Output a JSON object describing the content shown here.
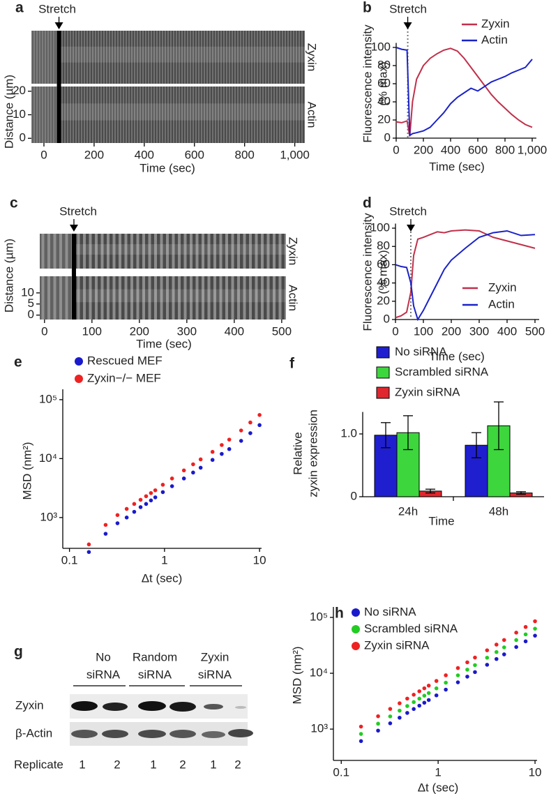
{
  "chart_data": [
    {
      "type": "kymograph",
      "panel": "a",
      "annotation": "Stretch",
      "tracks": [
        "Zyxin",
        "Actin"
      ],
      "xlabel": "Time (sec)",
      "ylabel": "Distance (µm)",
      "xlim": [
        -50,
        1040
      ],
      "xticks": [
        0,
        200,
        400,
        600,
        800,
        {
          "value": 1000,
          "label": "1,000"
        }
      ],
      "ylim": [
        -2,
        22
      ],
      "yticks": [
        0,
        10,
        20
      ],
      "stretch": 60
    },
    {
      "type": "line",
      "panel": "b",
      "annotation": "Stretch",
      "xlabel": "Time (sec)",
      "ylabel": [
        "Fluorescence intensity",
        "(% max)"
      ],
      "x": [
        0,
        40,
        80,
        100,
        120,
        150,
        200,
        250,
        300,
        350,
        400,
        450,
        500,
        550,
        600,
        650,
        700,
        750,
        800,
        850,
        900,
        950,
        1000
      ],
      "series": [
        {
          "name": "Zyxin",
          "color": "#c0304a",
          "values": [
            18,
            17,
            19,
            2,
            40,
            65,
            80,
            88,
            93,
            97,
            99,
            96,
            88,
            78,
            68,
            58,
            48,
            40,
            33,
            26,
            20,
            15,
            12
          ]
        },
        {
          "name": "Actin",
          "color": "#1a22c8",
          "values": [
            100,
            98,
            97,
            3,
            5,
            6,
            8,
            12,
            20,
            28,
            38,
            45,
            50,
            55,
            52,
            57,
            62,
            65,
            68,
            72,
            75,
            78,
            87
          ]
        }
      ],
      "xlim": [
        0,
        1000
      ],
      "xticks": [
        0,
        200,
        400,
        600,
        800,
        {
          "value": 1000,
          "label": "1,000"
        }
      ],
      "ylim": [
        0,
        105
      ],
      "yticks": [
        0,
        20,
        40,
        60,
        80,
        100
      ],
      "stretch": 85
    },
    {
      "type": "kymograph",
      "panel": "c",
      "annotation": "Stretch",
      "tracks": [
        "Zyxin",
        "Actin"
      ],
      "xlabel": "Time (sec)",
      "ylabel": "Distance (µm)",
      "xlim": [
        -10,
        509
      ],
      "xticks": [
        0,
        100,
        200,
        300,
        400,
        500
      ],
      "ylim": [
        -2,
        17.5
      ],
      "yticks": [
        0,
        5,
        10
      ],
      "stretch": 62
    },
    {
      "type": "line",
      "panel": "d",
      "annotation": "Stretch",
      "xlabel": "Time (sec)",
      "ylabel": [
        "Fluorescence intensity",
        "(% max)"
      ],
      "x": [
        0,
        20,
        40,
        55,
        65,
        80,
        100,
        125,
        150,
        175,
        200,
        250,
        300,
        350,
        400,
        450,
        500
      ],
      "series": [
        {
          "name": "Zyxin",
          "color": "#c0304a",
          "values": [
            2,
            4,
            8,
            30,
            70,
            88,
            90,
            93,
            96,
            95,
            97,
            98,
            97,
            90,
            86,
            82,
            78
          ]
        },
        {
          "name": "Actin",
          "color": "#1a22c8",
          "values": [
            60,
            58,
            57,
            40,
            15,
            0,
            10,
            25,
            40,
            55,
            65,
            78,
            90,
            95,
            97,
            92,
            93
          ]
        }
      ],
      "xlim": [
        0,
        500
      ],
      "xticks": [
        0,
        100,
        200,
        300,
        400,
        500
      ],
      "ylim": [
        0,
        105
      ],
      "yticks": [
        0,
        20,
        40,
        60,
        80,
        100
      ],
      "stretch": 55
    },
    {
      "type": "scatter",
      "panel": "e",
      "xlabel": "Δt (sec)",
      "ylabel": "MSD (nm²)",
      "xscale": "log",
      "yscale": "log",
      "x": [
        0.16,
        0.24,
        0.32,
        0.4,
        0.48,
        0.56,
        0.64,
        0.72,
        0.8,
        0.96,
        1.2,
        1.6,
        2,
        2.4,
        3.2,
        4,
        4.8,
        6.4,
        8,
        10
      ],
      "series": [
        {
          "name": "Rescued MEF",
          "color": "#1a1acc",
          "values": [
            260,
            530,
            800,
            1000,
            1250,
            1500,
            1700,
            1950,
            2200,
            2700,
            3400,
            4600,
            5800,
            7000,
            9500,
            12000,
            14500,
            20000,
            27000,
            37000
          ]
        },
        {
          "name": "Zyxin−/− MEF",
          "color": "#ee2222",
          "values": [
            350,
            750,
            1100,
            1400,
            1700,
            2000,
            2300,
            2600,
            2900,
            3600,
            4600,
            6300,
            8000,
            9700,
            13000,
            17000,
            21000,
            30000,
            41000,
            55000
          ]
        }
      ],
      "xlim": [
        0.085,
        10.5
      ],
      "xticks": [
        0.1,
        1,
        10
      ],
      "ylim": [
        300,
        150000
      ],
      "yticks": [
        {
          "value": 1000,
          "label": "10³"
        },
        {
          "value": 10000,
          "label": "10⁴"
        },
        {
          "value": 100000,
          "label": "10⁵"
        }
      ]
    },
    {
      "type": "bar",
      "panel": "f",
      "xlabel": "Time",
      "ylabel": [
        "Relative",
        "zyxin expression"
      ],
      "categories": [
        "24h",
        "48h"
      ],
      "series": [
        {
          "name": "No siRNA",
          "color": "#1f1fcf",
          "values": [
            0.98,
            0.82
          ],
          "errors": [
            0.2,
            0.2
          ]
        },
        {
          "name": "Scrambled siRNA",
          "color": "#3dd63d",
          "values": [
            1.02,
            1.13
          ],
          "errors": [
            0.27,
            0.38
          ]
        },
        {
          "name": "Zyxin siRNA",
          "color": "#e0262e",
          "values": [
            0.09,
            0.06
          ],
          "errors": [
            0.03,
            0.02
          ]
        }
      ],
      "ylim": [
        0,
        1.35
      ],
      "yticks": [
        0,
        {
          "value": 1,
          "label": "1.0"
        }
      ]
    },
    {
      "type": "blot",
      "panel": "g",
      "groups": [
        [
          "No",
          "siRNA"
        ],
        [
          "Random",
          "siRNA"
        ],
        [
          "Zyxin",
          "siRNA"
        ]
      ],
      "rows": [
        "Zyxin",
        "β-Actin"
      ],
      "replicate_label": "Replicate",
      "replicates": [
        "1",
        "2",
        "1",
        "2",
        "1",
        "2"
      ]
    },
    {
      "type": "scatter",
      "panel": "h",
      "xlabel": "Δt (sec)",
      "ylabel": "MSD (nm²)",
      "xscale": "log",
      "yscale": "log",
      "x": [
        0.16,
        0.24,
        0.32,
        0.4,
        0.48,
        0.56,
        0.64,
        0.72,
        0.8,
        0.96,
        1.2,
        1.6,
        2,
        2.4,
        3.2,
        4,
        4.8,
        6.4,
        8,
        10
      ],
      "series": [
        {
          "name": "No siRNA",
          "color": "#1a1acc",
          "values": [
            610,
            940,
            1270,
            1600,
            1950,
            2290,
            2630,
            2970,
            3320,
            4020,
            5090,
            6880,
            8700,
            10500,
            14200,
            18000,
            21800,
            29500,
            37300,
            47100
          ]
        },
        {
          "name": "Scrambled siRNA",
          "color": "#22cc22",
          "values": [
            820,
            1250,
            1690,
            2140,
            2590,
            3050,
            3510,
            3970,
            4430,
            5370,
            6780,
            9170,
            11600,
            14000,
            19000,
            24000,
            29100,
            39300,
            49700,
            62800
          ]
        },
        {
          "name": "Zyxin siRNA",
          "color": "#ee2222",
          "values": [
            1110,
            1700,
            2300,
            2900,
            3520,
            4130,
            4760,
            5380,
            6010,
            7280,
            9200,
            12400,
            15700,
            19100,
            25800,
            32600,
            39400,
            53400,
            67400,
            85300
          ]
        }
      ],
      "xlim": [
        0.083,
        10.5
      ],
      "xticks": [
        0.1,
        1,
        10
      ],
      "ylim": [
        275,
        154000
      ],
      "yticks": [
        {
          "value": 1000,
          "label": "10³"
        },
        {
          "value": 10000,
          "label": "10⁴"
        },
        {
          "value": 100000,
          "label": "10⁵"
        }
      ]
    }
  ]
}
